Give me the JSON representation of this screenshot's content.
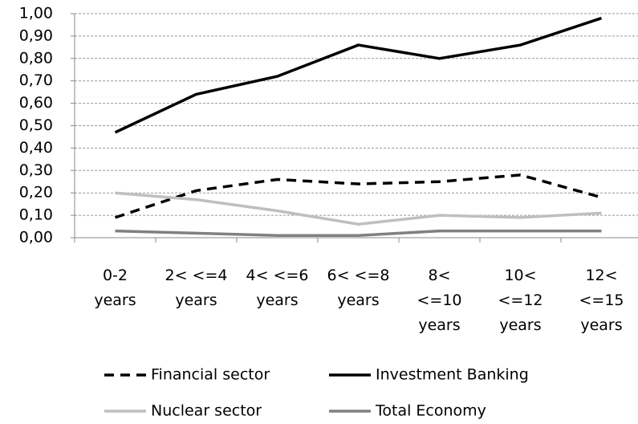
{
  "chart_data": {
    "type": "line",
    "categories": [
      "0-2\nyears",
      "2<  <=4\nyears",
      "4<  <=6\nyears",
      "6<  <=8\nyears",
      "8<\n<=10\nyears",
      "10<\n<=12\nyears",
      "12<\n<=15\nyears"
    ],
    "series": [
      {
        "name": "Financial sector",
        "color": "#000000",
        "dash": true,
        "values": [
          0.09,
          0.21,
          0.26,
          0.24,
          0.25,
          0.28,
          0.18
        ]
      },
      {
        "name": "Investment Banking",
        "color": "#000000",
        "dash": false,
        "values": [
          0.47,
          0.64,
          0.72,
          0.86,
          0.8,
          0.86,
          0.98
        ]
      },
      {
        "name": "Nuclear sector",
        "color": "#bfbfbf",
        "dash": false,
        "values": [
          0.2,
          0.17,
          0.12,
          0.06,
          0.1,
          0.09,
          0.11
        ]
      },
      {
        "name": "Total Economy",
        "color": "#808080",
        "dash": false,
        "values": [
          0.03,
          0.02,
          0.01,
          0.01,
          0.03,
          0.03,
          0.03
        ]
      }
    ],
    "ylim": [
      0,
      1
    ],
    "yticks": [
      {
        "value": 0,
        "label": "0,00"
      },
      {
        "value": 0.1,
        "label": "0,10"
      },
      {
        "value": 0.2,
        "label": "0,20"
      },
      {
        "value": 0.3,
        "label": "0,30"
      },
      {
        "value": 0.4,
        "label": "0,40"
      },
      {
        "value": 0.5,
        "label": "0,50"
      },
      {
        "value": 0.6,
        "label": "0,60"
      },
      {
        "value": 0.7,
        "label": "0,70"
      },
      {
        "value": 0.8,
        "label": "0,80"
      },
      {
        "value": 0.9,
        "label": "0,90"
      },
      {
        "value": 1,
        "label": "1,00"
      }
    ],
    "grid": true,
    "legend": "bottom"
  }
}
